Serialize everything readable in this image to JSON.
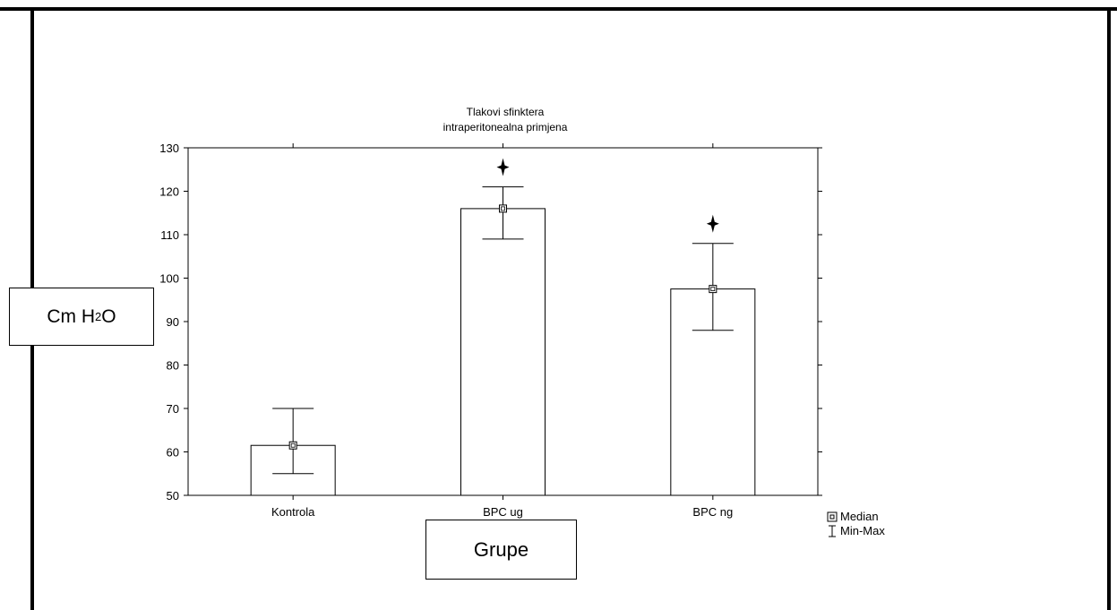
{
  "chart_data": {
    "type": "bar",
    "title": "Tlakovi sfinktera",
    "subtitle": "intraperitonealna primjena",
    "xlabel": "Grupe",
    "ylabel_main": "Cm H",
    "ylabel_sub": "2",
    "ylabel_tail": "O",
    "categories": [
      "Kontrola",
      "BPC ug",
      "BPC ng"
    ],
    "median": [
      61.5,
      116,
      97.5
    ],
    "min": [
      55,
      109,
      88
    ],
    "max": [
      70,
      121,
      108
    ],
    "significant": [
      false,
      true,
      true
    ],
    "ylim": [
      50,
      130
    ],
    "yticks": [
      50,
      60,
      70,
      80,
      90,
      100,
      110,
      120,
      130
    ],
    "legend": {
      "position": "bottom-right",
      "entries": [
        {
          "symbol": "square-icon",
          "label": "Median"
        },
        {
          "symbol": "errorbar-icon",
          "label": "Min-Max"
        }
      ]
    },
    "grid": false
  }
}
